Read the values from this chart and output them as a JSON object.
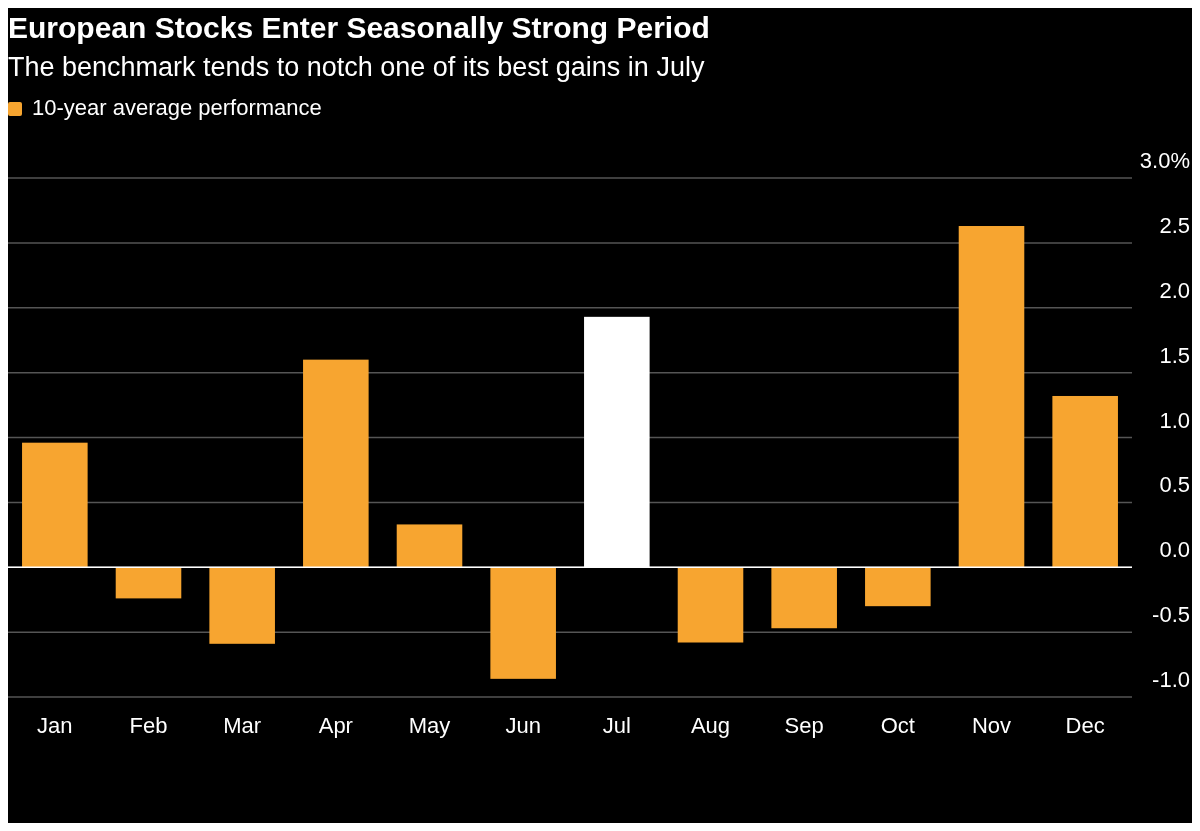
{
  "chart_data": {
    "type": "bar",
    "title": "European Stocks Enter Seasonally Strong Period",
    "subtitle": "The benchmark tends to notch one of its best gains in July",
    "categories": [
      "Jan",
      "Feb",
      "Mar",
      "Apr",
      "May",
      "Jun",
      "Jul",
      "Aug",
      "Sep",
      "Oct",
      "Nov",
      "Dec"
    ],
    "series": [
      {
        "name": "10-year average performance",
        "color": "#f7a530",
        "colors": [
          "#f7a530",
          "#f7a530",
          "#f7a530",
          "#f7a530",
          "#f7a530",
          "#f7a530",
          "#ffffff",
          "#f7a530",
          "#f7a530",
          "#f7a530",
          "#f7a530",
          "#f7a530"
        ],
        "values": [
          0.96,
          -0.24,
          -0.59,
          1.6,
          0.33,
          -0.86,
          1.93,
          -0.58,
          -0.47,
          -0.3,
          2.63,
          1.32
        ]
      }
    ],
    "ylim": [
      -1.0,
      3.0
    ],
    "yticks": [
      {
        "value": -1,
        "label": "-1.0"
      },
      -0.5,
      {
        "value": 0,
        "label": "0.0"
      },
      0.5,
      {
        "value": 1,
        "label": "1.0"
      },
      1.5,
      {
        "value": 2,
        "label": "2.0"
      },
      2.5,
      {
        "value": 3,
        "label": "3.0%"
      }
    ],
    "grid": "y",
    "legend": "top left"
  }
}
